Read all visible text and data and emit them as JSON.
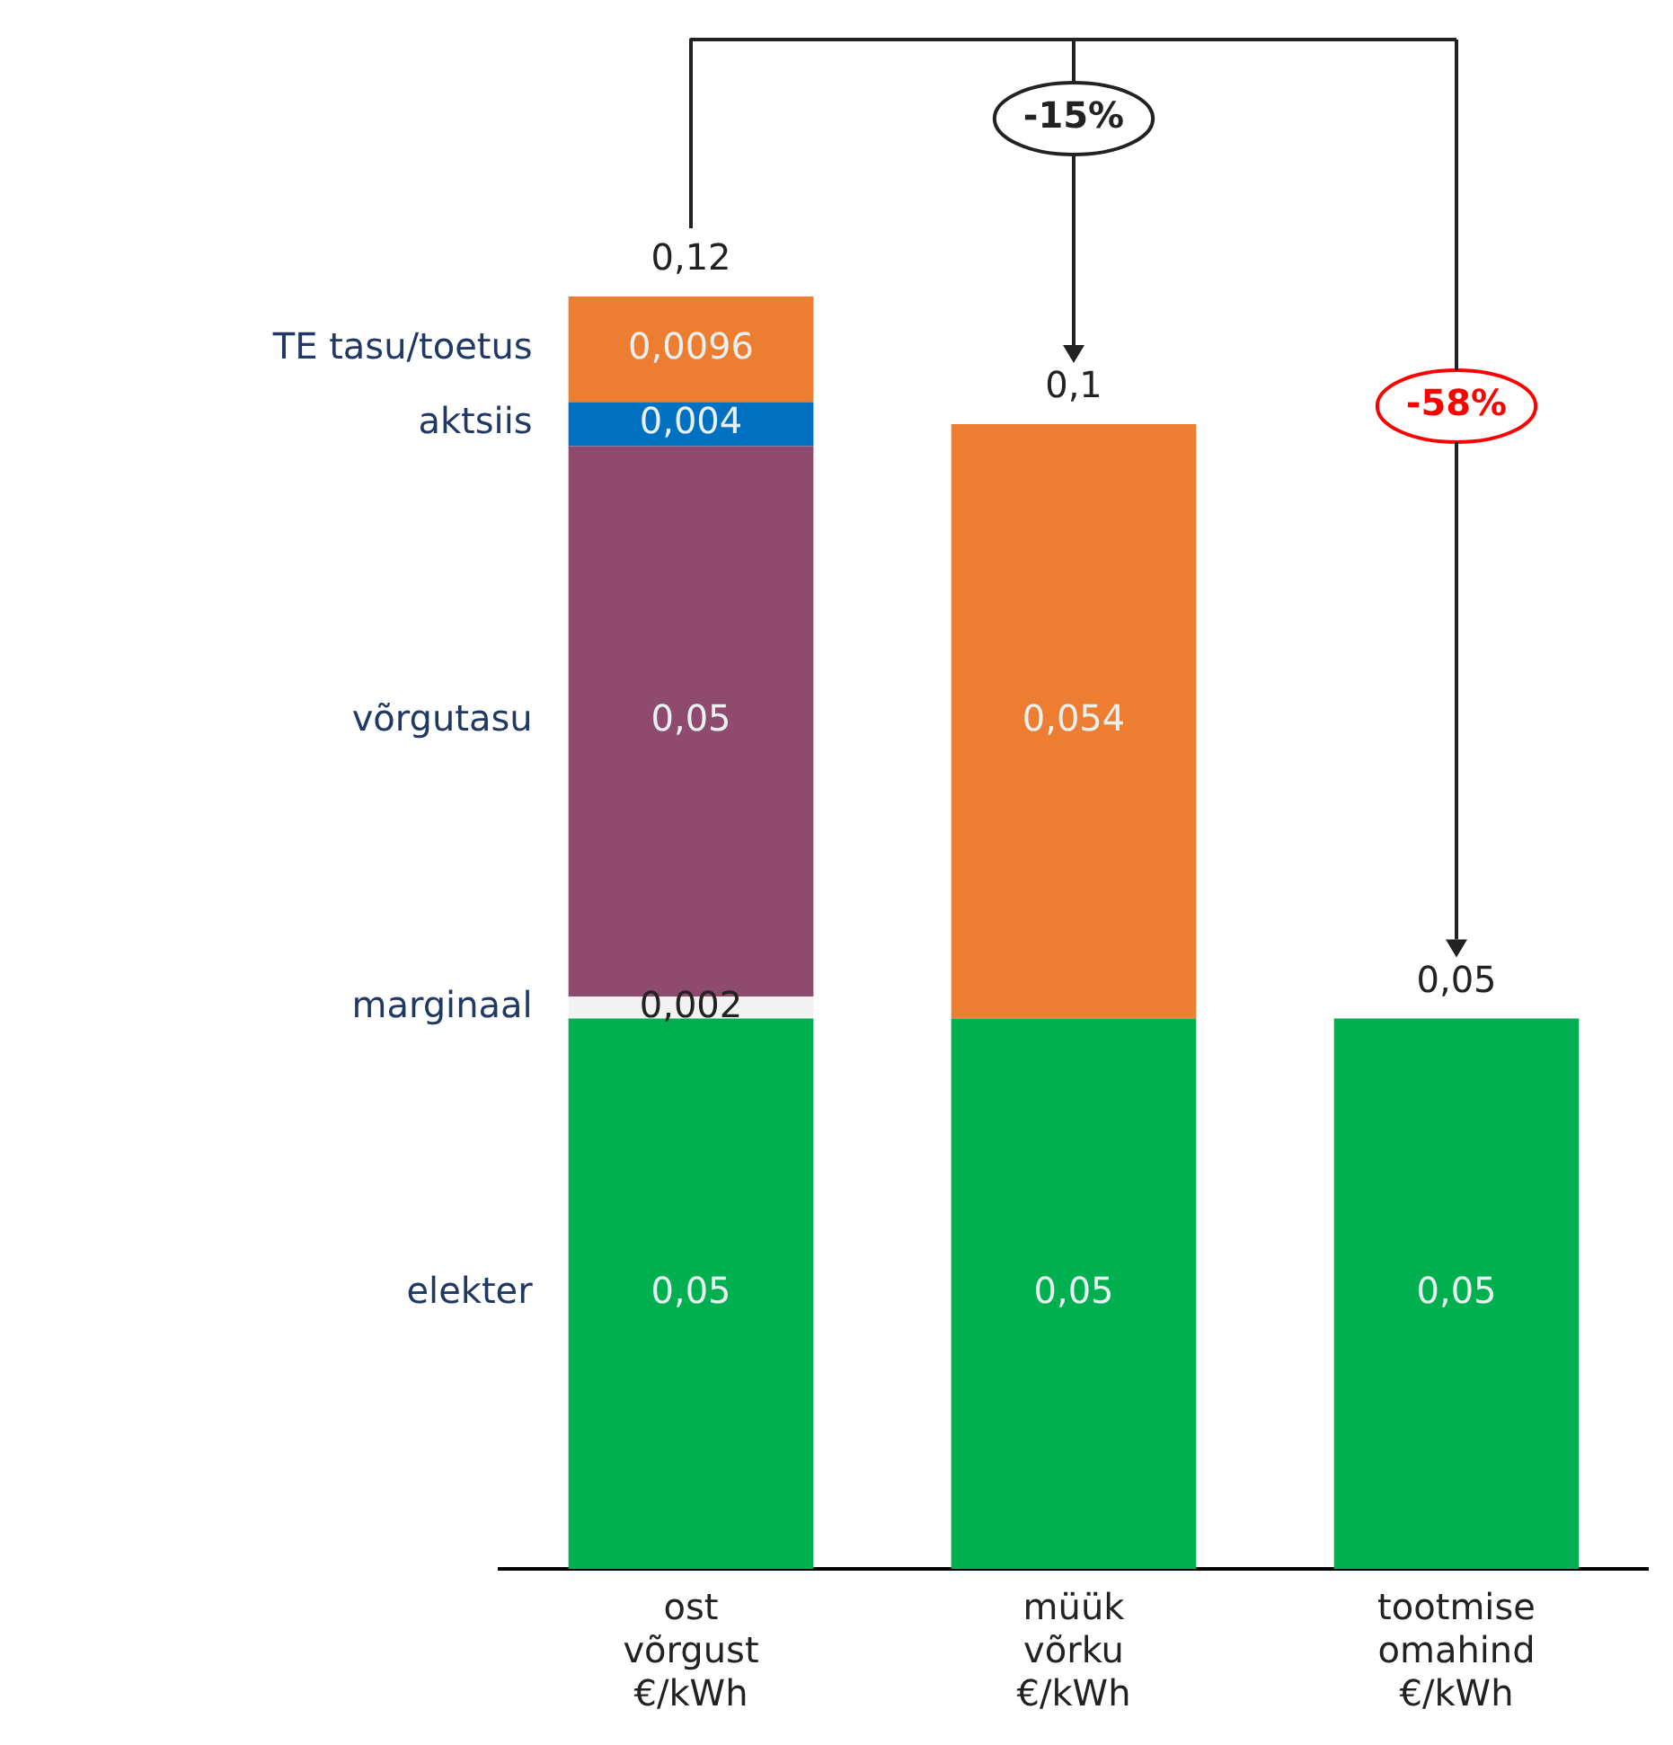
{
  "chart_data": {
    "type": "bar",
    "stacked": true,
    "categories": [
      "ost\nvõrgust\n€/kWh",
      "müük\nvõrku\n€/kWh",
      "tootmise\nomahind\n€/kWh"
    ],
    "series": [
      {
        "name": "elekter",
        "color": "#00b050",
        "values": [
          0.05,
          0.05,
          0.05
        ],
        "value_labels": [
          "0,05",
          "0,05",
          "0,05"
        ]
      },
      {
        "name": "marginaal",
        "color": "#f2f2f2",
        "values": [
          0.002,
          null,
          null
        ],
        "value_labels": [
          "0,002",
          null,
          null
        ]
      },
      {
        "name": "võrgutasu",
        "color": "#8e4b6e",
        "values": [
          0.05,
          null,
          null
        ],
        "value_labels": [
          "0,05",
          null,
          null
        ]
      },
      {
        "color": "#ed7d31",
        "values": [
          null,
          0.054,
          null
        ],
        "value_labels": [
          null,
          "0,054",
          null
        ]
      },
      {
        "name": "aktsiis",
        "color": "#0070c0",
        "values": [
          0.004,
          null,
          null
        ],
        "value_labels": [
          "0,004",
          null,
          null
        ]
      },
      {
        "name": "TE tasu/toetus",
        "color": "#ed7d31",
        "values": [
          0.0096,
          null,
          null
        ],
        "value_labels": [
          "0,0096",
          null,
          null
        ]
      }
    ],
    "totals": [
      "0,12",
      "0,1",
      "0,05"
    ],
    "annotations": [
      "-15%",
      "-58%"
    ]
  }
}
